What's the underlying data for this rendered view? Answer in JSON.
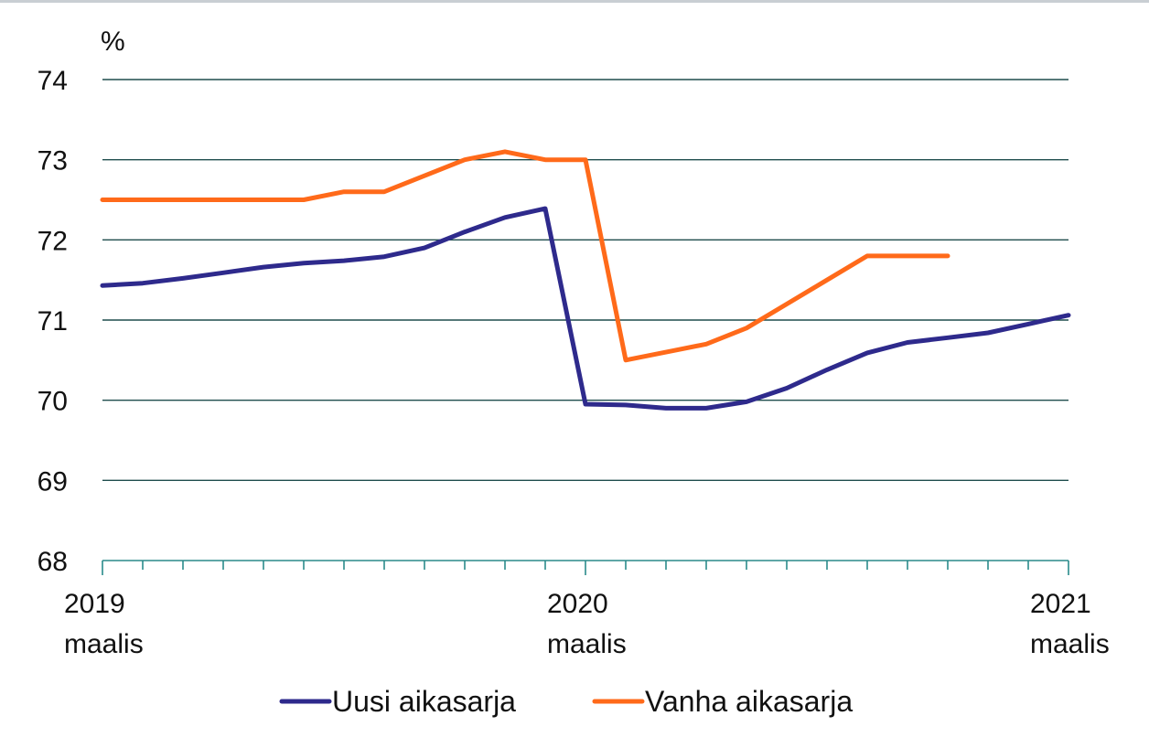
{
  "chart_data": {
    "type": "line",
    "unit": "%",
    "ylim": [
      68,
      74
    ],
    "yticks": [
      "68",
      "69",
      "70",
      "71",
      "72",
      "73",
      "74"
    ],
    "x_range": [
      0,
      24
    ],
    "xticks": [
      {
        "x": 0,
        "year": "2019",
        "month": "maalis"
      },
      {
        "x": 12,
        "year": "2020",
        "month": "maalis"
      },
      {
        "x": 24,
        "year": "2021",
        "month": "maalis"
      }
    ],
    "grid": true,
    "legend_position": "bottom",
    "series": [
      {
        "name": "Uusi aikasarja",
        "color": "#2e2a8c",
        "points": [
          [
            0,
            71.43
          ],
          [
            1,
            71.46
          ],
          [
            2,
            71.52
          ],
          [
            3,
            71.59
          ],
          [
            4,
            71.66
          ],
          [
            5,
            71.71
          ],
          [
            6,
            71.74
          ],
          [
            7,
            71.79
          ],
          [
            8,
            71.9
          ],
          [
            9,
            72.1
          ],
          [
            10,
            72.28
          ],
          [
            11,
            72.39
          ],
          [
            12,
            69.95
          ],
          [
            13,
            69.94
          ],
          [
            14,
            69.9
          ],
          [
            15,
            69.9
          ],
          [
            16,
            69.98
          ],
          [
            17,
            70.15
          ],
          [
            18,
            70.38
          ],
          [
            19,
            70.59
          ],
          [
            20,
            70.72
          ],
          [
            21,
            70.78
          ],
          [
            22,
            70.84
          ],
          [
            23,
            70.95
          ],
          [
            24,
            71.06
          ]
        ]
      },
      {
        "name": "Vanha aikasarja",
        "color": "#ff6a1a",
        "points": [
          [
            0,
            72.5
          ],
          [
            1,
            72.5
          ],
          [
            2,
            72.5
          ],
          [
            3,
            72.5
          ],
          [
            4,
            72.5
          ],
          [
            5,
            72.5
          ],
          [
            6,
            72.6
          ],
          [
            7,
            72.6
          ],
          [
            8,
            72.8
          ],
          [
            9,
            73.0
          ],
          [
            10,
            73.1
          ],
          [
            11,
            73.0
          ],
          [
            12,
            73.0
          ],
          [
            13,
            70.5
          ],
          [
            14,
            70.6
          ],
          [
            15,
            70.7
          ],
          [
            16,
            70.9
          ],
          [
            17,
            71.2
          ],
          [
            18,
            71.5
          ],
          [
            19,
            71.8
          ],
          [
            20,
            71.8
          ],
          [
            21,
            71.8
          ]
        ]
      }
    ]
  }
}
